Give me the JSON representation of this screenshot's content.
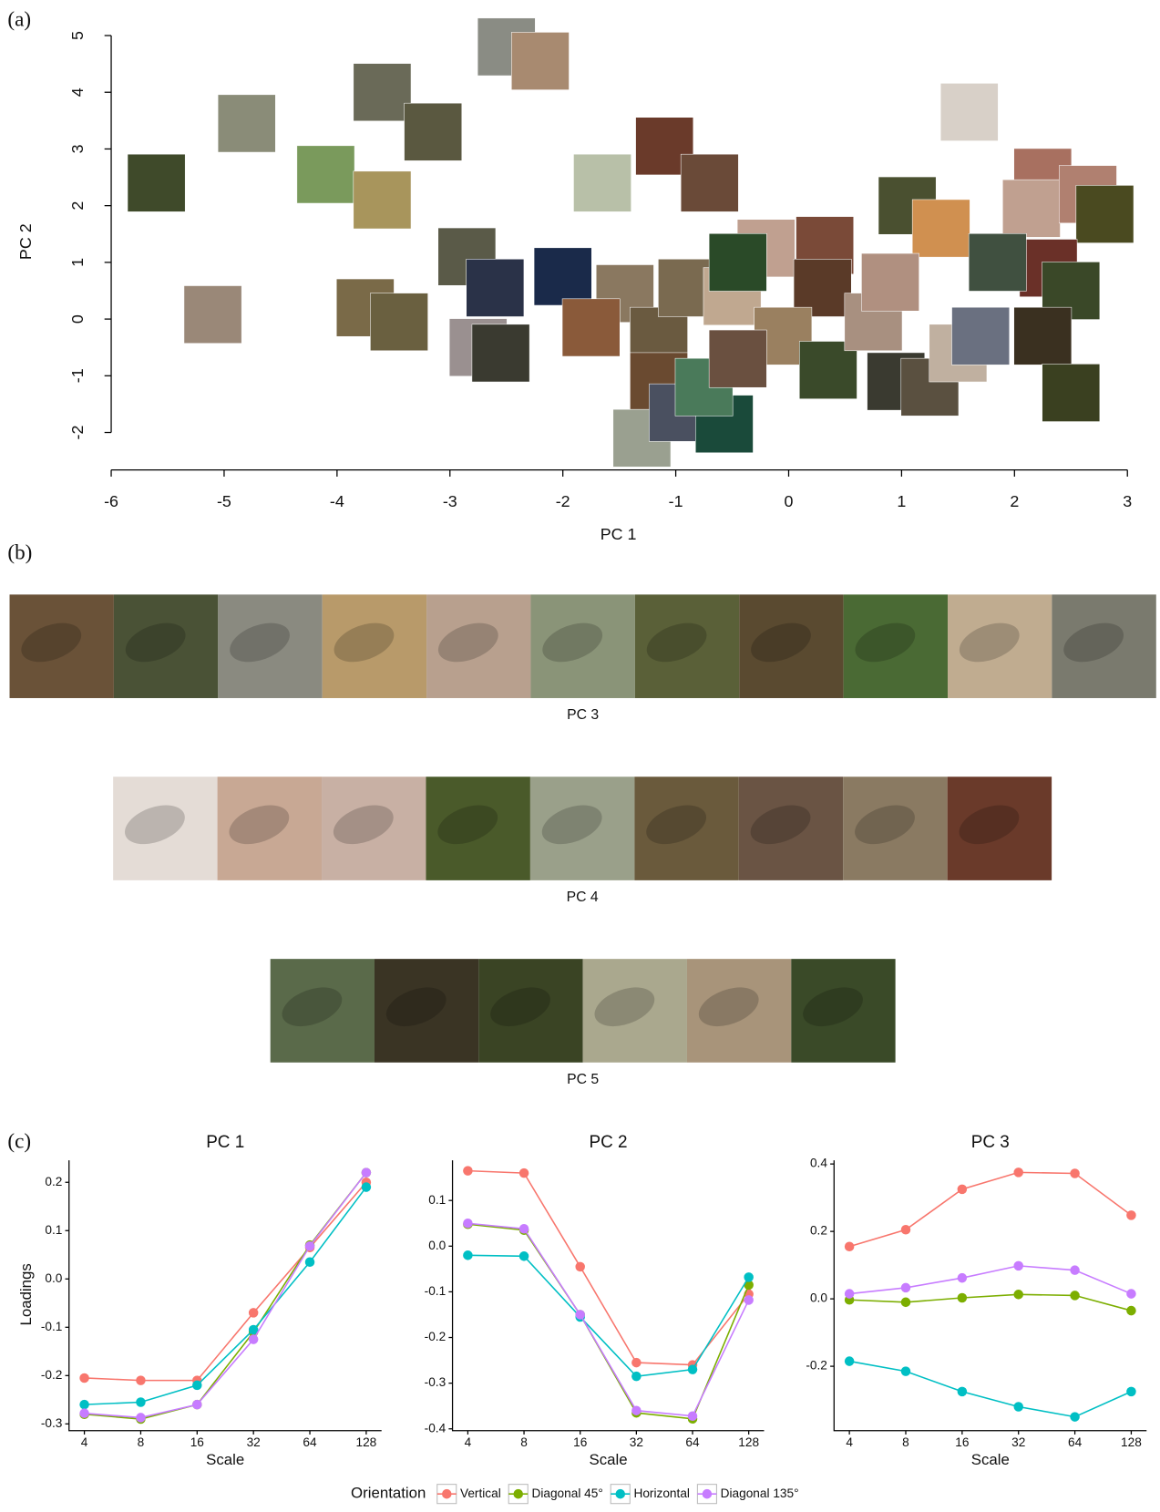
{
  "panel_labels": [
    "(a)",
    "(b)",
    "(c)"
  ],
  "texture_strips": [
    {
      "label": "PC 3",
      "colors": [
        "#6a5238",
        "#4a5236",
        "#8a8a80",
        "#b89a6a",
        "#b8a08e",
        "#8a9478",
        "#5a6038",
        "#5a4a30",
        "#4a6a34",
        "#c0ac90",
        "#7a7a6e"
      ]
    },
    {
      "label": "PC 4",
      "colors": [
        "#e4dcd6",
        "#c8a894",
        "#c8b0a4",
        "#4a5a2a",
        "#9aa08a",
        "#6a5a3c",
        "#6a5444",
        "#8a7a62",
        "#6a3a2a"
      ]
    },
    {
      "label": "PC 5",
      "colors": [
        "#5a6a4a",
        "#3a3424",
        "#3a4424",
        "#aaa88e",
        "#a8947a",
        "#3a4a28"
      ]
    }
  ],
  "chart_data": [
    {
      "type": "scatter",
      "xlabel": "PC 1",
      "ylabel": "PC 2",
      "xlim": [
        -6,
        3
      ],
      "ylim": [
        -2.66,
        5
      ],
      "xticks": [
        -6,
        -5,
        -4,
        -3,
        -2,
        -1,
        0,
        1,
        2,
        3
      ],
      "yticks": [
        -2,
        -1,
        0,
        1,
        2,
        3,
        4,
        5
      ],
      "x": [
        -5.6,
        -4.8,
        -5.1,
        -4.1,
        -3.6,
        -3.15,
        -3.6,
        -3.75,
        -3.45,
        -2.5,
        -2.2,
        -1.65,
        -1.1,
        -0.7,
        -2.85,
        -2.75,
        -2.6,
        -2.0,
        -1.45,
        -1.15,
        -2.55,
        -1.75,
        -1.15,
        -1.3,
        -0.98,
        -0.57,
        -0.75,
        -0.9,
        -0.5,
        -0.2,
        0.32,
        -0.45,
        0.3,
        -0.05,
        -0.45,
        0.35,
        0.75,
        0.95,
        1.25,
        1.5,
        1.7,
        1.05,
        1.35,
        1.6,
        2.25,
        2.15,
        2.65,
        2.8,
        2.3,
        2.5,
        1.85,
        2.25,
        2.5,
        0.9
      ],
      "y": [
        2.4,
        3.45,
        0.08,
        2.55,
        4.0,
        3.3,
        2.1,
        0.2,
        -0.05,
        4.8,
        4.55,
        2.4,
        3.05,
        2.4,
        1.1,
        -0.5,
        0.55,
        0.75,
        0.45,
        -0.3,
        -0.6,
        -0.15,
        -1.1,
        -2.1,
        -1.65,
        -1.85,
        -1.2,
        0.55,
        0.4,
        1.25,
        1.3,
        1.0,
        0.55,
        -0.3,
        -0.7,
        -0.9,
        -0.05,
        -1.1,
        -1.2,
        -0.6,
        -0.3,
        2.0,
        1.6,
        3.65,
        2.5,
        1.95,
        2.2,
        1.85,
        0.9,
        0.5,
        1.0,
        -0.3,
        -1.3,
        0.65
      ],
      "colors": [
        "#3f4a2a",
        "#8a8c78",
        "#9a8878",
        "#7a9a5c",
        "#6a6a58",
        "#5a5840",
        "#a8955c",
        "#7a6a48",
        "#6a6040",
        "#8a8c84",
        "#a88a70",
        "#b8c0a8",
        "#6a3a2a",
        "#6a4a38",
        "#5a5a48",
        "#9a9090",
        "#2a3248",
        "#1a2a4a",
        "#8a7860",
        "#6a5a40",
        "#3a3a30",
        "#8a5a3a",
        "#6a4a30",
        "#9aa090",
        "#4a5060",
        "#1a4a3a",
        "#4a7a5a",
        "#7a6a50",
        "#c0a890",
        "#c0a090",
        "#7a4a38",
        "#2a4a28",
        "#5a3a28",
        "#9a8060",
        "#6a5040",
        "#3a4a2a",
        "#a89080",
        "#3a3a30",
        "#5a5040",
        "#c0b0a0",
        "#6a7080",
        "#4a5030",
        "#d09050",
        "#d8d0c8",
        "#a87060",
        "#c0a090",
        "#b08070",
        "#4a4a20",
        "#6a3028",
        "#3a4828",
        "#405040",
        "#3a3020",
        "#3a4020",
        "#b09080"
      ]
    },
    {
      "type": "line",
      "title": "PC 1",
      "xlabel": "Scale",
      "ylabel": "Loadings",
      "legend_title": "Orientation",
      "categories": [
        "4",
        "8",
        "16",
        "32",
        "64",
        "128"
      ],
      "ylim": [
        -0.314,
        0.2456
      ],
      "yticks": [
        -0.3,
        -0.2,
        -0.1,
        {
          "value": 0,
          "label": "0.0"
        },
        0.1,
        0.2
      ],
      "series": [
        {
          "name": "Vertical",
          "color": "#f8766d",
          "values": [
            -0.205,
            -0.21,
            -0.21,
            -0.07,
            0.065,
            0.2
          ]
        },
        {
          "name": "Diagonal 45°",
          "color": "#7cae00",
          "values": [
            -0.28,
            -0.29,
            -0.26,
            -0.11,
            0.07,
            0.22
          ]
        },
        {
          "name": "Horizontal",
          "color": "#00bfc4",
          "values": [
            -0.26,
            -0.255,
            -0.22,
            -0.105,
            0.035,
            0.19
          ]
        },
        {
          "name": "Diagonal 135°",
          "color": "#c77cff",
          "values": [
            -0.278,
            -0.287,
            -0.26,
            -0.125,
            0.068,
            0.22
          ]
        }
      ]
    },
    {
      "type": "line",
      "title": "PC 2",
      "xlabel": "Scale",
      "categories": [
        "4",
        "8",
        "16",
        "32",
        "64",
        "128"
      ],
      "ylim": [
        -0.404,
        0.188
      ],
      "yticks": [
        -0.4,
        -0.3,
        -0.2,
        -0.1,
        {
          "value": 0,
          "label": "0.0"
        },
        0.1
      ],
      "series": [
        {
          "name": "Vertical",
          "color": "#f8766d",
          "values": [
            0.165,
            0.16,
            -0.045,
            -0.255,
            -0.26,
            -0.105
          ]
        },
        {
          "name": "Diagonal 45°",
          "color": "#7cae00",
          "values": [
            0.048,
            0.035,
            -0.15,
            -0.365,
            -0.378,
            -0.085
          ]
        },
        {
          "name": "Horizontal",
          "color": "#00bfc4",
          "values": [
            -0.02,
            -0.022,
            -0.155,
            -0.285,
            -0.27,
            -0.068
          ]
        },
        {
          "name": "Diagonal 135°",
          "color": "#c77cff",
          "values": [
            0.05,
            0.038,
            -0.15,
            -0.36,
            -0.372,
            -0.118
          ]
        }
      ]
    },
    {
      "type": "line",
      "title": "PC 3",
      "xlabel": "Scale",
      "categories": [
        "4",
        "8",
        "16",
        "32",
        "64",
        "128"
      ],
      "ylim": [
        -0.391,
        0.411
      ],
      "yticks": [
        -0.2,
        {
          "value": 0,
          "label": "0.0"
        },
        0.2,
        0.4
      ],
      "series": [
        {
          "name": "Vertical",
          "color": "#f8766d",
          "values": [
            0.155,
            0.205,
            0.325,
            0.375,
            0.372,
            0.248
          ]
        },
        {
          "name": "Diagonal 45°",
          "color": "#7cae00",
          "values": [
            -0.003,
            -0.01,
            0.003,
            0.013,
            0.01,
            -0.035
          ]
        },
        {
          "name": "Horizontal",
          "color": "#00bfc4",
          "values": [
            -0.185,
            -0.215,
            -0.275,
            -0.32,
            -0.35,
            -0.275
          ]
        },
        {
          "name": "Diagonal 135°",
          "color": "#c77cff",
          "values": [
            0.015,
            0.033,
            0.062,
            0.098,
            0.085,
            0.015
          ]
        }
      ]
    }
  ]
}
